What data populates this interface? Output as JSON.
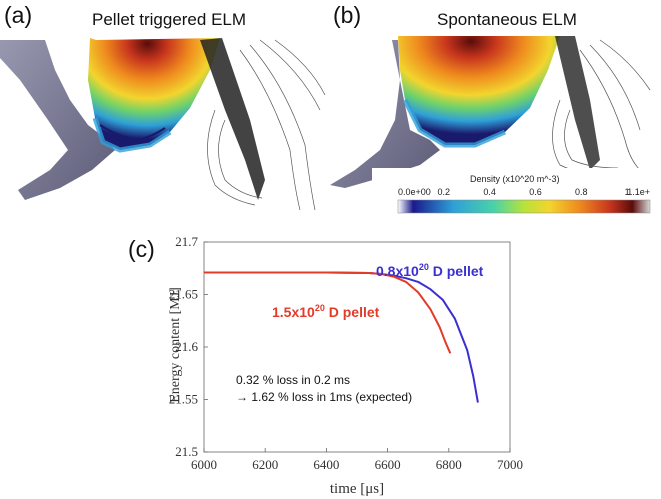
{
  "panels": {
    "a": {
      "label": "(a)",
      "title": "Pellet triggered ELM"
    },
    "b": {
      "label": "(b)",
      "title": "Spontaneous ELM"
    },
    "c": {
      "label": "(c)"
    }
  },
  "colorbar": {
    "title": "Density (x10^20 m^-3)",
    "ticks": [
      "0.0e+00",
      "0.2",
      "0.4",
      "0.6",
      "0.8",
      "1",
      "1.1e+"
    ],
    "colors": [
      "#ffffff",
      "#1a1a8c",
      "#2fa0d8",
      "#49d2a8",
      "#b8e23a",
      "#f2d52e",
      "#ef8a1e",
      "#c8361d",
      "#5a0c0c",
      "#d8d8d8"
    ]
  },
  "chart_data": {
    "type": "line",
    "xlabel": "time [μs]",
    "ylabel": "Energy content [MJ]",
    "xlim": [
      6000,
      7000
    ],
    "ylim": [
      21.5,
      21.7
    ],
    "xticks": [
      "6000",
      "6200",
      "6400",
      "6600",
      "6800",
      "7000"
    ],
    "yticks": [
      "21.5",
      "21.55",
      "21.6",
      "21.65",
      "21.7"
    ],
    "series": [
      {
        "name": "0.8x10^20 D pellet",
        "color": "#3a2fd0",
        "x": [
          6000,
          6200,
          6400,
          6540,
          6580,
          6620,
          6660,
          6700,
          6740,
          6780,
          6820,
          6860,
          6880,
          6895
        ],
        "y": [
          21.671,
          21.671,
          21.671,
          21.6705,
          21.6695,
          21.668,
          21.6655,
          21.662,
          21.655,
          21.645,
          21.627,
          21.597,
          21.572,
          21.547
        ]
      },
      {
        "name": "1.5x10^20 D pellet",
        "color": "#e23b2a",
        "x": [
          6000,
          6200,
          6400,
          6540,
          6580,
          6620,
          6660,
          6700,
          6740,
          6770,
          6790,
          6805
        ],
        "y": [
          21.671,
          21.671,
          21.671,
          21.6705,
          21.6695,
          21.667,
          21.662,
          21.652,
          21.636,
          21.619,
          21.604,
          21.594
        ]
      }
    ],
    "legend_labels": [
      {
        "base": "0.8x10",
        "sup": "20",
        "rest": " D pellet",
        "color": "#3a2fd0"
      },
      {
        "base": "1.5x10",
        "sup": "20",
        "rest": " D pellet",
        "color": "#e23b2a"
      }
    ],
    "annotations": [
      "0.32 % loss in 0.2 ms",
      "→ 1.62 % loss in 1ms (expected)"
    ],
    "grid": false
  }
}
